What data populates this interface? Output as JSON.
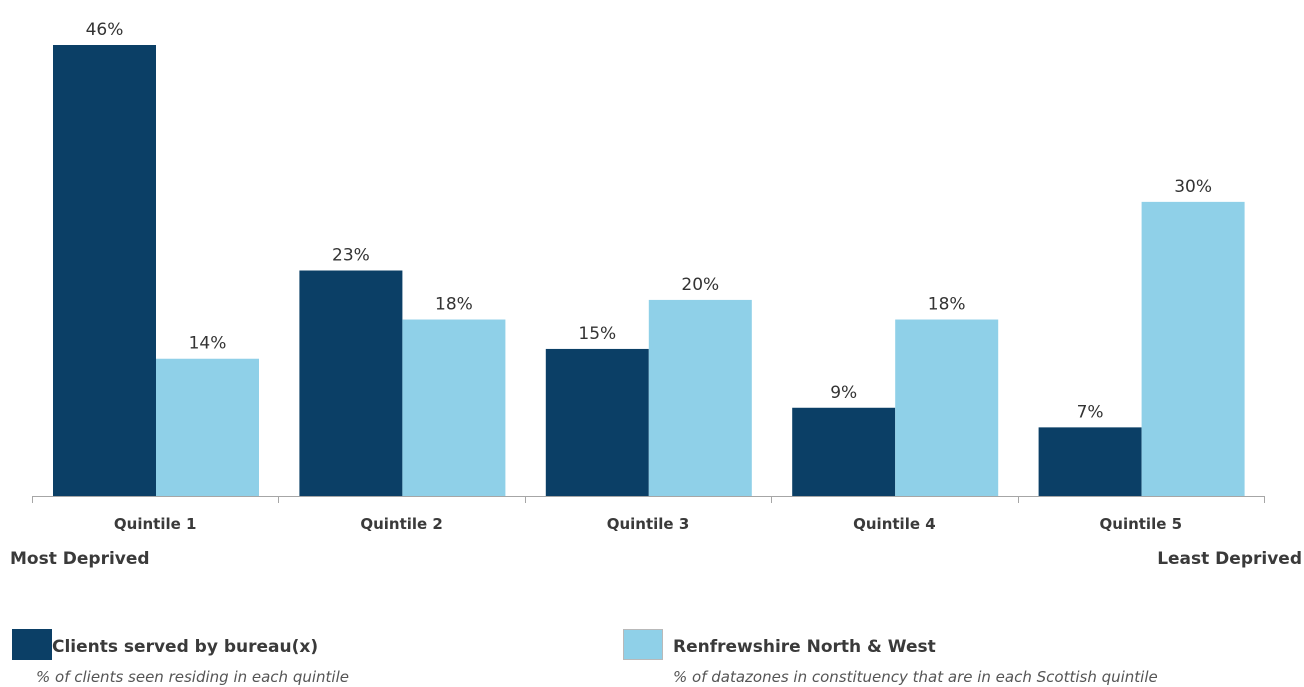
{
  "chart_data": {
    "type": "bar",
    "categories": [
      "Quintile 1",
      "Quintile 2",
      "Quintile 3",
      "Quintile 4",
      "Quintile 5"
    ],
    "series": [
      {
        "name": "Clients served by bureau(x)",
        "values": [
          46,
          23,
          15,
          9,
          7
        ],
        "color": "#0b3f66"
      },
      {
        "name": "Renfrewshire North & West",
        "values": [
          14,
          18,
          20,
          18,
          30
        ],
        "color": "#8fd0e8"
      }
    ],
    "value_suffix": "%",
    "ylim": [
      0,
      46
    ],
    "grid": false,
    "legend_position": "bottom"
  },
  "poles": {
    "left": "Most Deprived",
    "right": "Least Deprived"
  },
  "legend": [
    {
      "name": "Clients served by bureau(x)",
      "description": "% of clients seen residing in each quintile",
      "color": "#0b3f66"
    },
    {
      "name": "Renfrewshire North & West",
      "description": "% of datazones in constituency that are in each Scottish quintile",
      "color": "#8fd0e8"
    }
  ]
}
